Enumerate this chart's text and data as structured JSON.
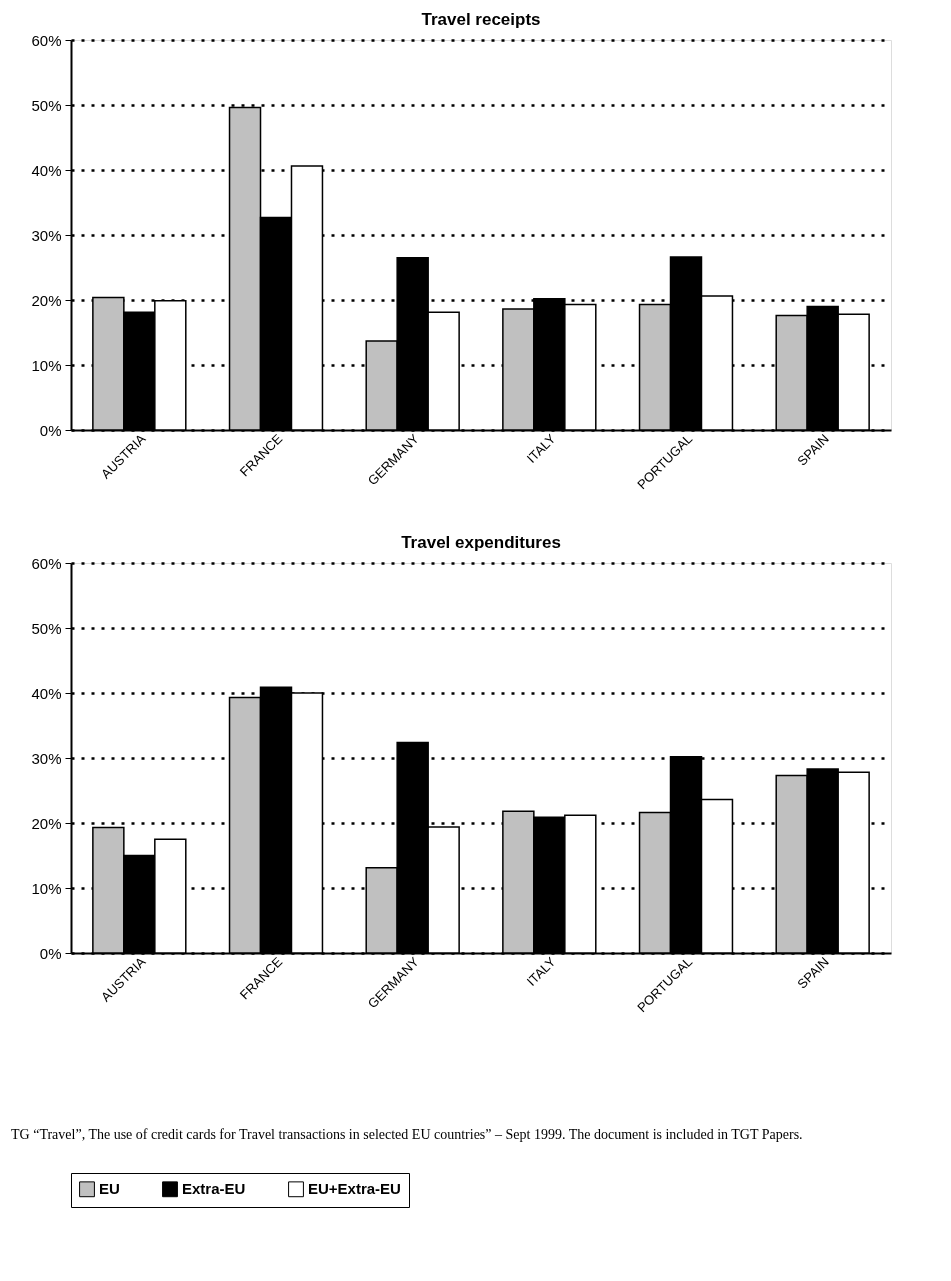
{
  "chart_data": [
    {
      "type": "bar",
      "title": "Travel receipts",
      "categories": [
        "AUSTRIA",
        "FRANCE",
        "GERMANY",
        "ITALY",
        "PORTUGAL",
        "SPAIN"
      ],
      "series": [
        {
          "name": "EU",
          "color": "#c0c0c0",
          "values": [
            20.4,
            49.6,
            13.7,
            18.6,
            19.3,
            17.6
          ]
        },
        {
          "name": "Extra-EU",
          "color": "#000000",
          "values": [
            18.1,
            32.7,
            26.5,
            20.2,
            26.6,
            19.0
          ]
        },
        {
          "name": "EU+Extra-EU",
          "color": "#ffffff",
          "values": [
            19.9,
            40.6,
            18.1,
            19.3,
            20.6,
            17.8
          ]
        }
      ],
      "ylim": [
        0,
        60
      ],
      "yticks": [
        {
          "value": 0,
          "label": "0%"
        },
        {
          "value": 10,
          "label": "10%"
        },
        {
          "value": 20,
          "label": "20%"
        },
        {
          "value": 30,
          "label": "30%"
        },
        {
          "value": 40,
          "label": "40%"
        },
        {
          "value": 50,
          "label": "50%"
        },
        {
          "value": 60,
          "label": "60%"
        }
      ],
      "grid": "y",
      "legend": "bottom"
    },
    {
      "type": "bar",
      "title": "Travel expenditures",
      "categories": [
        "AUSTRIA",
        "FRANCE",
        "GERMANY",
        "ITALY",
        "PORTUGAL",
        "SPAIN"
      ],
      "series": [
        {
          "name": "EU",
          "color": "#c0c0c0",
          "values": [
            19.3,
            39.3,
            13.1,
            21.8,
            21.6,
            27.3
          ]
        },
        {
          "name": "Extra-EU",
          "color": "#000000",
          "values": [
            15.0,
            40.9,
            32.4,
            20.9,
            30.2,
            28.3
          ]
        },
        {
          "name": "EU+Extra-EU",
          "color": "#ffffff",
          "values": [
            17.5,
            40.0,
            19.4,
            21.2,
            23.6,
            27.8
          ]
        }
      ],
      "ylim": [
        0,
        60
      ],
      "yticks": [
        {
          "value": 0,
          "label": "0%"
        },
        {
          "value": 10,
          "label": "10%"
        },
        {
          "value": 20,
          "label": "20%"
        },
        {
          "value": 30,
          "label": "30%"
        },
        {
          "value": 40,
          "label": "40%"
        },
        {
          "value": 50,
          "label": "50%"
        },
        {
          "value": 60,
          "label": "60%"
        }
      ],
      "grid": "y",
      "legend": "bottom",
      "annotations": [
        "TG “Travel”, The use of credit cards for Travel transactions in selected EU countries” – Sept 1999. The document is included in TGT Papers."
      ]
    }
  ]
}
